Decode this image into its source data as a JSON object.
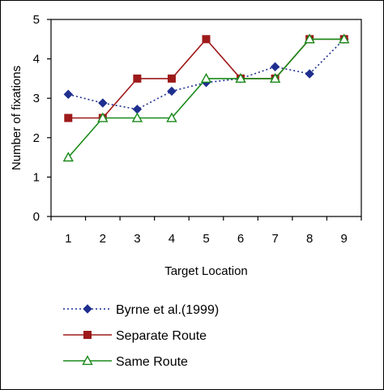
{
  "chart_data": {
    "type": "line",
    "title": "",
    "xlabel": "Target Location",
    "ylabel": "Number of fixations",
    "x": [
      1,
      2,
      3,
      4,
      5,
      6,
      7,
      8,
      9
    ],
    "xticks": [
      "1",
      "2",
      "3",
      "4",
      "5",
      "6",
      "7",
      "8",
      "9"
    ],
    "yticks": [
      "0",
      "1",
      "2",
      "3",
      "4",
      "5"
    ],
    "ylim": [
      0,
      5
    ],
    "grid": false,
    "legend_position": "bottom",
    "series": [
      {
        "name": "Byrne et al.(1999)",
        "values": [
          3.1,
          2.88,
          2.72,
          3.18,
          3.4,
          3.5,
          3.8,
          3.62,
          4.5
        ],
        "color": "#1f2f8f",
        "line_style": "dotted",
        "marker": "diamond"
      },
      {
        "name": "Separate Route",
        "values": [
          2.5,
          2.5,
          3.5,
          3.5,
          4.5,
          3.5,
          3.5,
          4.5,
          4.5
        ],
        "color": "#9e1a1a",
        "line_style": "solid",
        "marker": "square"
      },
      {
        "name": "Same Route",
        "values": [
          1.5,
          2.5,
          2.5,
          2.5,
          3.5,
          3.5,
          3.5,
          4.5,
          4.5
        ],
        "color": "#1a8a1a",
        "line_style": "solid",
        "marker": "triangle-open"
      }
    ]
  }
}
